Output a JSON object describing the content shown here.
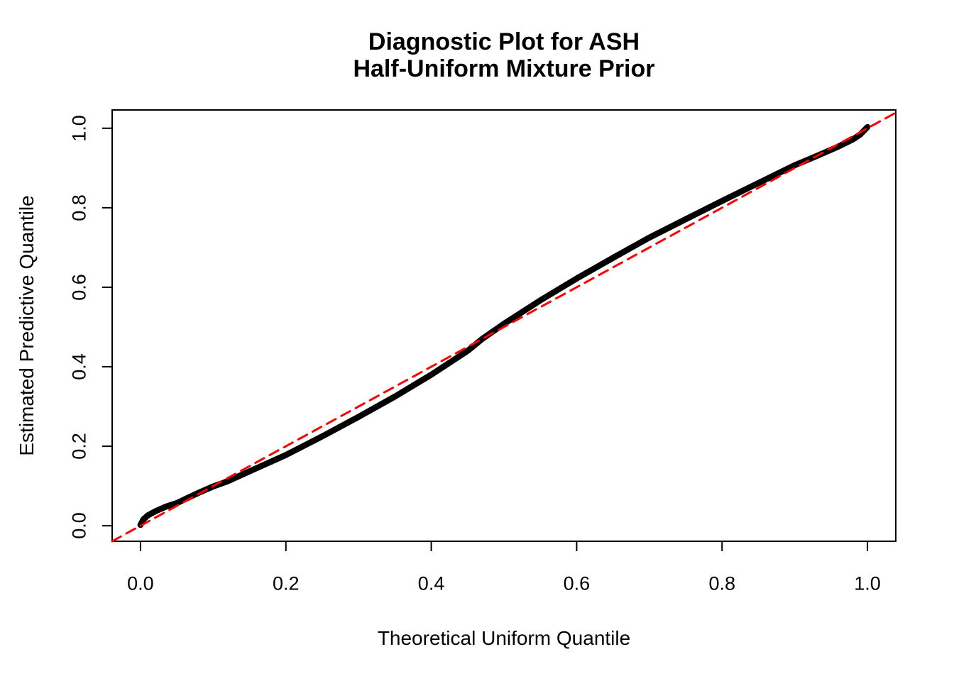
{
  "title": {
    "line1": "Diagnostic Plot for ASH",
    "line2": "Half-Uniform Mixture Prior"
  },
  "axes": {
    "x_label": "Theoretical Uniform Quantile",
    "y_label": "Estimated Predictive Quantile"
  },
  "colors": {
    "background": "#ffffff",
    "box": "#000000",
    "tick": "#000000",
    "text": "#000000",
    "curve": "#000000",
    "reference": "#ff0000"
  },
  "chart_data": {
    "type": "line",
    "title": "Diagnostic Plot for ASH Half-Uniform Mixture Prior",
    "xlabel": "Theoretical Uniform Quantile",
    "ylabel": "Estimated Predictive Quantile",
    "xlim": [
      -0.039,
      1.039
    ],
    "ylim": [
      -0.039,
      1.046
    ],
    "grid": false,
    "legend": "none",
    "x_ticks": [
      0.0,
      0.2,
      0.4,
      0.6,
      0.8,
      1.0
    ],
    "x_tick_labels": [
      "0.0",
      "0.2",
      "0.4",
      "0.6",
      "0.8",
      "1.0"
    ],
    "y_ticks": [
      0.0,
      0.2,
      0.4,
      0.6,
      0.8,
      1.0
    ],
    "y_tick_labels": [
      "0.0",
      "0.2",
      "0.4",
      "0.6",
      "0.8",
      "1.0"
    ],
    "series": [
      {
        "name": "estimated-predictive-quantiles",
        "style": "solid",
        "color": "#000000",
        "stroke_width": 8.5,
        "x": [
          0.0,
          0.004,
          0.01,
          0.02,
          0.035,
          0.05,
          0.065,
          0.08,
          0.1,
          0.12,
          0.15,
          0.2,
          0.25,
          0.3,
          0.35,
          0.4,
          0.45,
          0.47,
          0.5,
          0.55,
          0.6,
          0.65,
          0.7,
          0.75,
          0.8,
          0.85,
          0.9,
          0.93,
          0.96,
          0.98,
          0.99,
          1.0
        ],
        "y": [
          0.002,
          0.016,
          0.026,
          0.036,
          0.048,
          0.057,
          0.07,
          0.083,
          0.099,
          0.112,
          0.137,
          0.178,
          0.225,
          0.274,
          0.325,
          0.38,
          0.44,
          0.47,
          0.508,
          0.567,
          0.622,
          0.674,
          0.725,
          0.771,
          0.817,
          0.862,
          0.907,
          0.93,
          0.954,
          0.972,
          0.984,
          1.003
        ]
      },
      {
        "name": "reference-diagonal",
        "style": "dashed",
        "color": "#ff0000",
        "stroke_width": 3,
        "x": [
          -0.039,
          1.039
        ],
        "y": [
          -0.039,
          1.039
        ]
      }
    ]
  }
}
